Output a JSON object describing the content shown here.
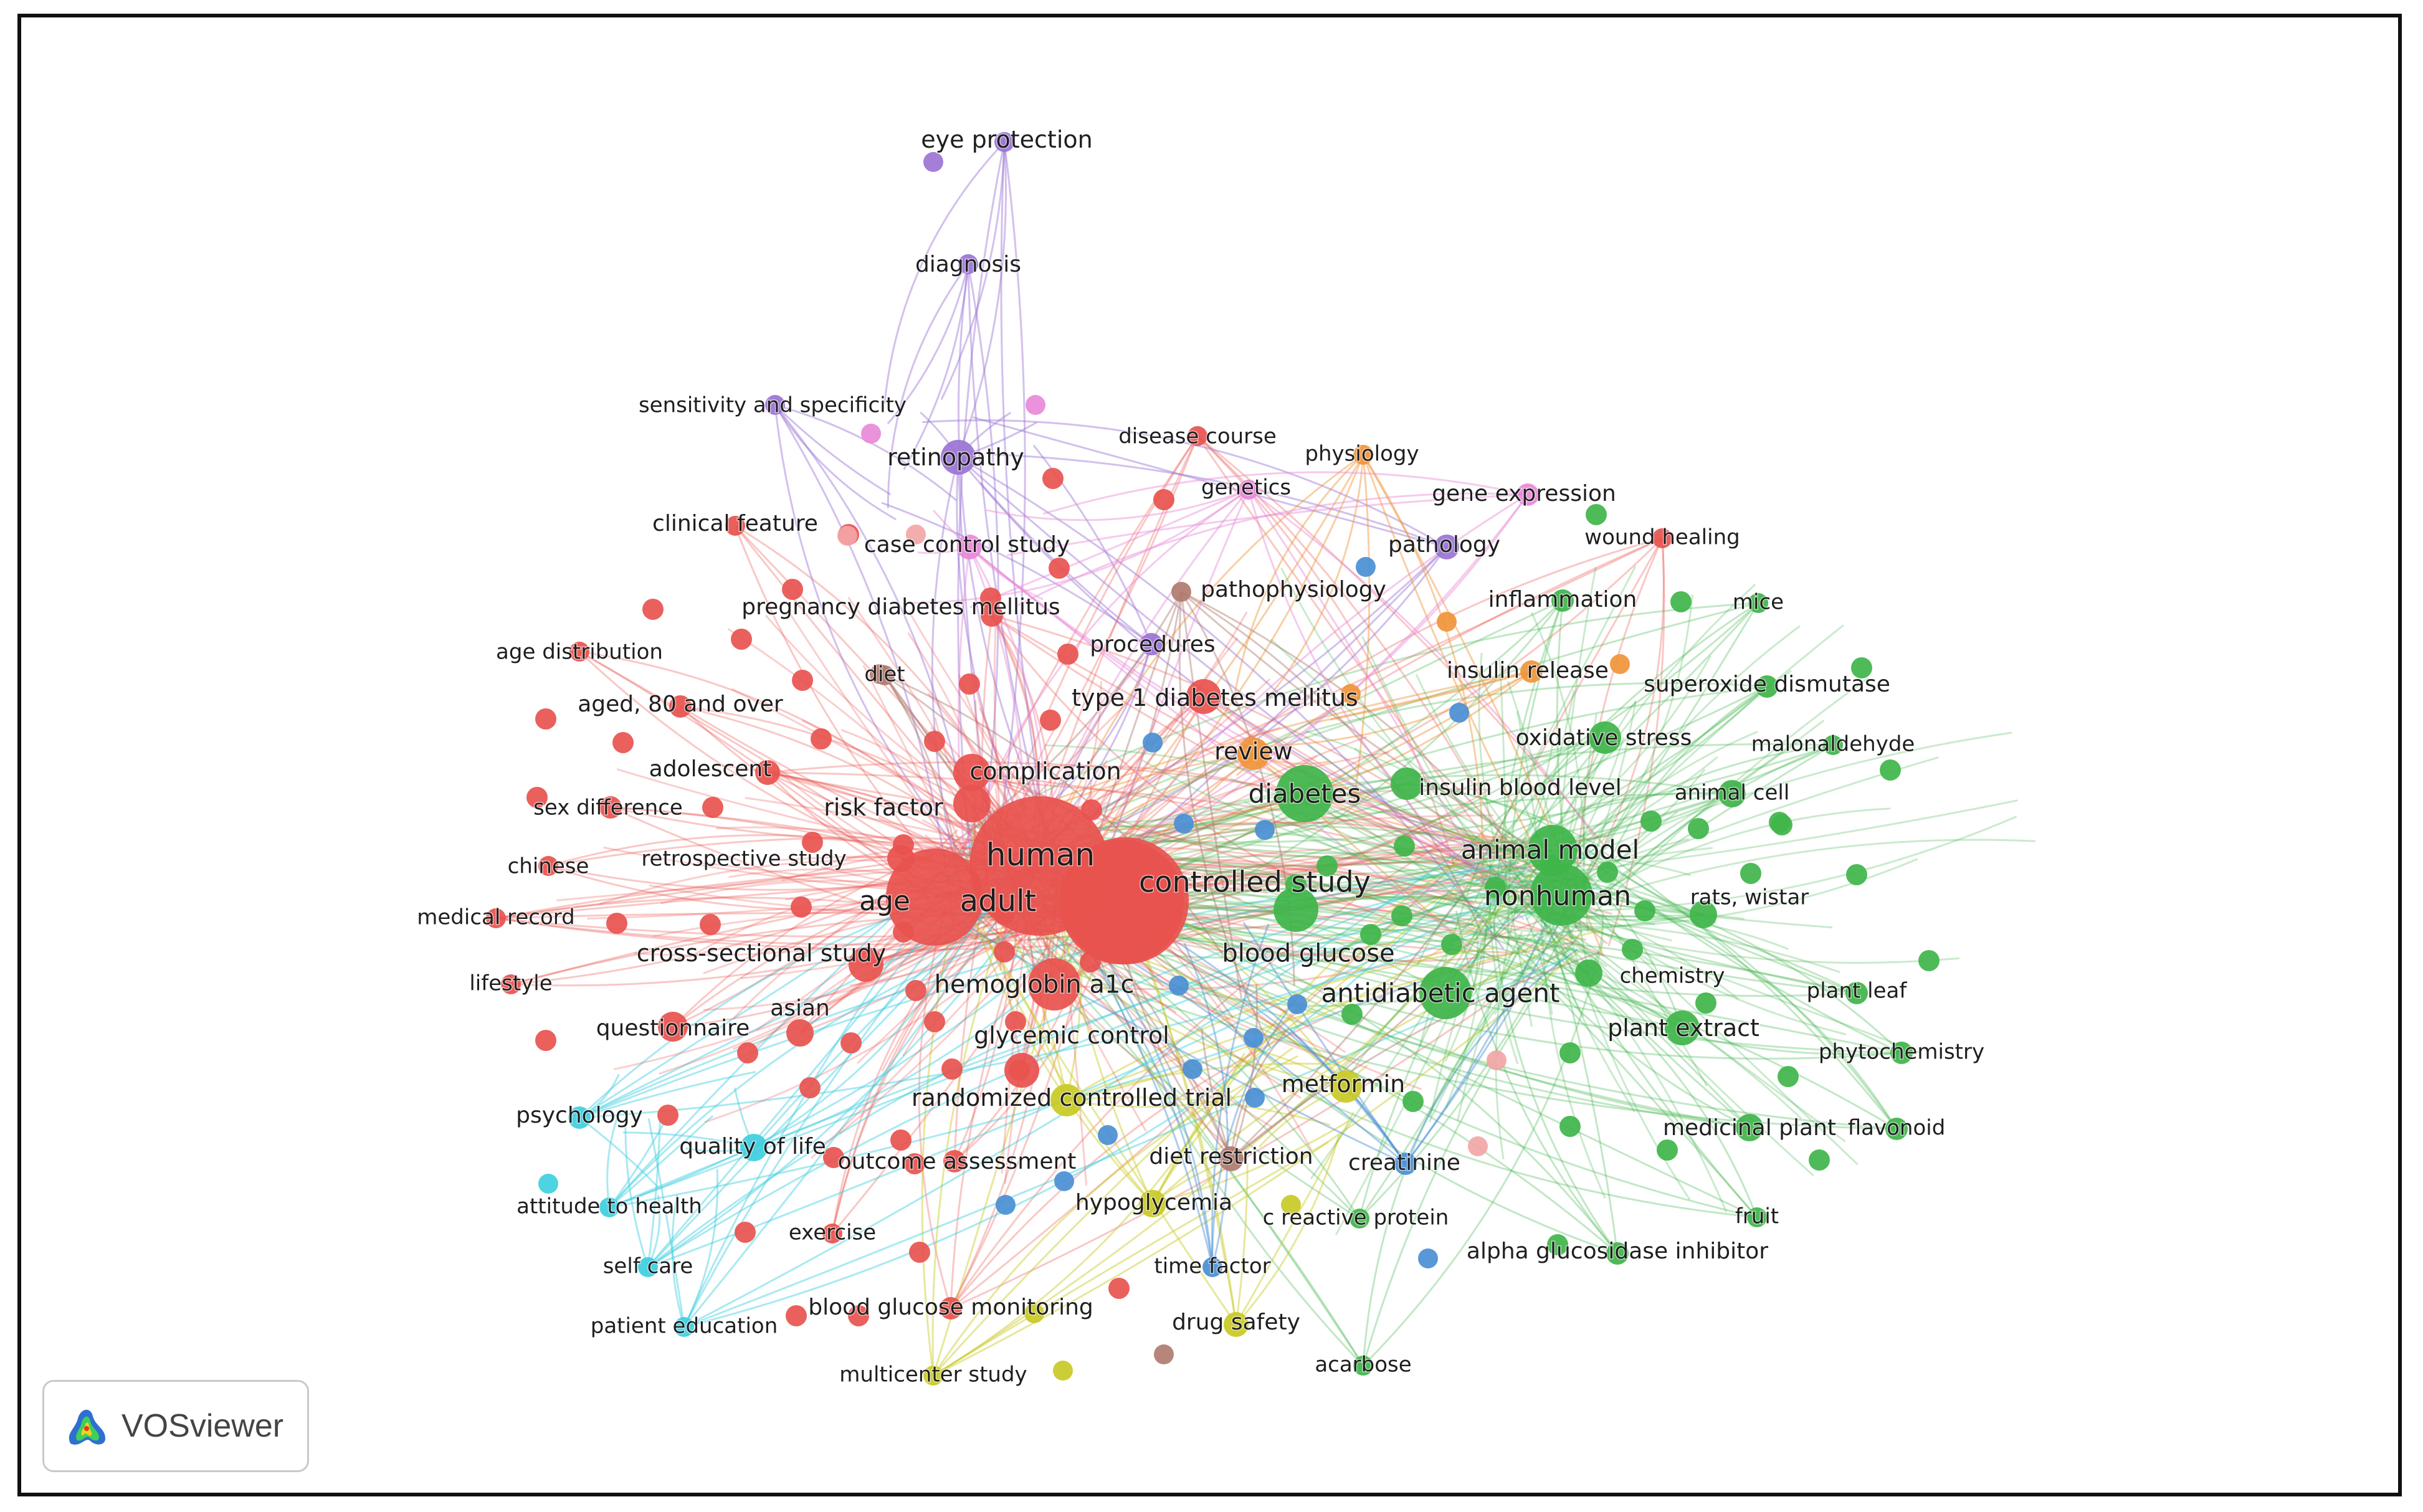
{
  "app": {
    "name": "VOSviewer"
  },
  "clusters": {
    "red": "#e8534f",
    "green": "#3fb54a",
    "blue": "#4a8fd4",
    "yellow": "#c9c926",
    "purple": "#9b74d4",
    "cyan": "#3fcfe0",
    "orange": "#f0943a",
    "brown": "#b07c70",
    "pink": "#e889d8",
    "salmon": "#f2a6a6"
  },
  "nodes": [
    {
      "label": "human",
      "c": "red",
      "w": 60
    },
    {
      "label": "adult",
      "c": "red",
      "w": 55
    },
    {
      "label": "age",
      "c": "red",
      "w": 40
    },
    {
      "label": "controlled study",
      "c": "red",
      "w": 46
    },
    {
      "label": "hemoglobin a1c",
      "c": "red",
      "w": 26
    },
    {
      "label": "cross-sectional study",
      "c": "red",
      "w": 18
    },
    {
      "label": "risk factor",
      "c": "red",
      "w": 20
    },
    {
      "label": "complication",
      "c": "red",
      "w": 18
    },
    {
      "label": "type 1 diabetes mellitus",
      "c": "red",
      "w": 16
    },
    {
      "label": "glycemic control",
      "c": "red",
      "w": 16
    },
    {
      "label": "retrospective study",
      "c": "red",
      "w": 14
    },
    {
      "label": "asian",
      "c": "red",
      "w": 14
    },
    {
      "label": "questionnaire",
      "c": "red",
      "w": 14
    },
    {
      "label": "adolescent",
      "c": "red",
      "w": 14
    },
    {
      "label": "sex difference",
      "c": "red",
      "w": 12
    },
    {
      "label": "aged, 80 and over",
      "c": "red",
      "w": 12
    },
    {
      "label": "age distribution",
      "c": "red",
      "w": 10
    },
    {
      "label": "clinical feature",
      "c": "red",
      "w": 10
    },
    {
      "label": "pregnancy diabetes mellitus",
      "c": "red",
      "w": 12
    },
    {
      "label": "disease course",
      "c": "red",
      "w": 10
    },
    {
      "label": "chinese",
      "c": "red",
      "w": 10
    },
    {
      "label": "medical record",
      "c": "red",
      "w": 10
    },
    {
      "label": "lifestyle",
      "c": "red",
      "w": 10
    },
    {
      "label": "outcome assessment",
      "c": "red",
      "w": 12
    },
    {
      "label": "exercise",
      "c": "red",
      "w": 10
    },
    {
      "label": "blood glucose monitoring",
      "c": "red",
      "w": 12
    },
    {
      "label": "wound healing",
      "c": "red",
      "w": 10
    },
    {
      "label": "diabetes",
      "c": "green",
      "w": 28
    },
    {
      "label": "nonhuman",
      "c": "green",
      "w": 30
    },
    {
      "label": "animal model",
      "c": "green",
      "w": 24
    },
    {
      "label": "blood glucose",
      "c": "green",
      "w": 22
    },
    {
      "label": "antidiabetic agent",
      "c": "green",
      "w": 26
    },
    {
      "label": "insulin blood level",
      "c": "green",
      "w": 16
    },
    {
      "label": "oxidative stress",
      "c": "green",
      "w": 16
    },
    {
      "label": "animal cell",
      "c": "green",
      "w": 14
    },
    {
      "label": "rats, wistar",
      "c": "green",
      "w": 14
    },
    {
      "label": "chemistry",
      "c": "green",
      "w": 14
    },
    {
      "label": "plant extract",
      "c": "green",
      "w": 18
    },
    {
      "label": "plant leaf",
      "c": "green",
      "w": 12
    },
    {
      "label": "phytochemistry",
      "c": "green",
      "w": 12
    },
    {
      "label": "medicinal plant",
      "c": "green",
      "w": 14
    },
    {
      "label": "flavonoid",
      "c": "green",
      "w": 12
    },
    {
      "label": "fruit",
      "c": "green",
      "w": 10
    },
    {
      "label": "alpha glucosidase inhibitor",
      "c": "green",
      "w": 12
    },
    {
      "label": "c reactive protein",
      "c": "green",
      "w": 10
    },
    {
      "label": "acarbose",
      "c": "green",
      "w": 10
    },
    {
      "label": "superoxide dismutase",
      "c": "green",
      "w": 12
    },
    {
      "label": "malonaldehyde",
      "c": "green",
      "w": 10
    },
    {
      "label": "inflammation",
      "c": "green",
      "w": 12
    },
    {
      "label": "mice",
      "c": "green",
      "w": 10
    },
    {
      "label": "metformin",
      "c": "yellow",
      "w": 16
    },
    {
      "label": "randomized controlled trial",
      "c": "yellow",
      "w": 16
    },
    {
      "label": "hypoglycemia",
      "c": "yellow",
      "w": 14
    },
    {
      "label": "drug safety",
      "c": "yellow",
      "w": 12
    },
    {
      "label": "multicenter study",
      "c": "yellow",
      "w": 10
    },
    {
      "label": "creatinine",
      "c": "blue",
      "w": 12
    },
    {
      "label": "time factor",
      "c": "blue",
      "w": 10
    },
    {
      "label": "retinopathy",
      "c": "purple",
      "w": 16
    },
    {
      "label": "eye protection",
      "c": "purple",
      "w": 10
    },
    {
      "label": "diagnosis",
      "c": "purple",
      "w": 10
    },
    {
      "label": "sensitivity and specificity",
      "c": "purple",
      "w": 10
    },
    {
      "label": "pathology",
      "c": "purple",
      "w": 12
    },
    {
      "label": "procedures",
      "c": "purple",
      "w": 12
    },
    {
      "label": "psychology",
      "c": "cyan",
      "w": 12
    },
    {
      "label": "quality of life",
      "c": "cyan",
      "w": 14
    },
    {
      "label": "attitude to health",
      "c": "cyan",
      "w": 10
    },
    {
      "label": "self care",
      "c": "cyan",
      "w": 10
    },
    {
      "label": "patient education",
      "c": "cyan",
      "w": 10
    },
    {
      "label": "review",
      "c": "orange",
      "w": 16
    },
    {
      "label": "insulin release",
      "c": "orange",
      "w": 12
    },
    {
      "label": "physiology",
      "c": "orange",
      "w": 10
    },
    {
      "label": "pathophysiology",
      "c": "brown",
      "w": 12
    },
    {
      "label": "diet restriction",
      "c": "brown",
      "w": 12
    },
    {
      "label": "diet",
      "c": "brown",
      "w": 10
    },
    {
      "label": "genetics",
      "c": "pink",
      "w": 10
    },
    {
      "label": "gene expression",
      "c": "pink",
      "w": 12
    },
    {
      "label": "case control study",
      "c": "pink",
      "w": 12
    }
  ]
}
